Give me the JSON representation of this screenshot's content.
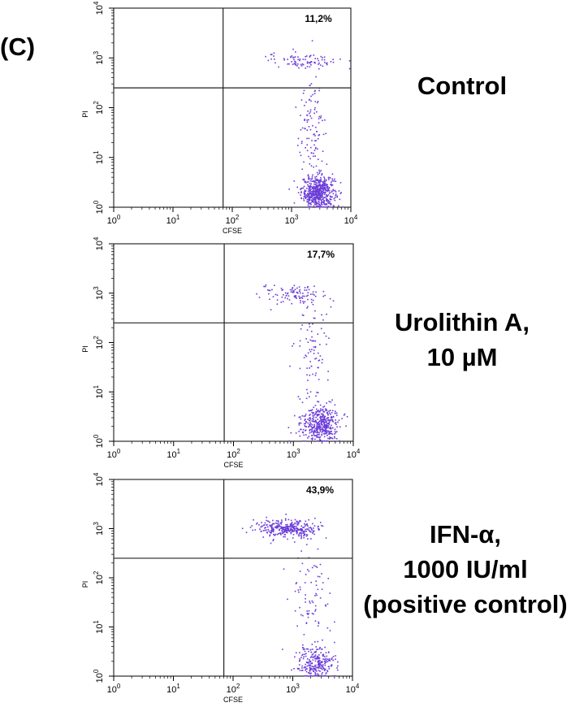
{
  "panel_label": "(C)",
  "conditions": [
    {
      "line1": "Control",
      "line2": "",
      "line3": ""
    },
    {
      "line1": "Urolithin A,",
      "line2": "10 µM",
      "line3": ""
    },
    {
      "line1": "IFN-α,",
      "line2": "1000 IU/ml",
      "line3": "(positive control)"
    }
  ],
  "chart_data": [
    {
      "type": "scatter",
      "xlabel": "CFSE",
      "ylabel": "PI",
      "xscale": "log",
      "yscale": "log",
      "xlim": [
        1,
        10000
      ],
      "ylim": [
        1,
        10000
      ],
      "xticks": [
        1,
        10,
        100,
        1000,
        10000
      ],
      "yticks": [
        1,
        10,
        100,
        1000,
        10000
      ],
      "gate": {
        "x": 70,
        "y": 250
      },
      "annotation": "11,2%",
      "point_color": "#6a3bd8",
      "clusters": [
        {
          "cx_log": 3.45,
          "cy_log": 0.3,
          "sx": 0.14,
          "sy": 0.17,
          "n": 560
        },
        {
          "cx_log": 3.2,
          "cy_log": 2.95,
          "sx": 0.3,
          "sy": 0.08,
          "n": 85
        },
        {
          "cx_log": 3.35,
          "cy_log": 1.6,
          "sx": 0.13,
          "sy": 0.55,
          "n": 110
        }
      ]
    },
    {
      "type": "scatter",
      "xlabel": "CFSE",
      "ylabel": "PI",
      "xscale": "log",
      "yscale": "log",
      "xlim": [
        1,
        10000
      ],
      "ylim": [
        1,
        10000
      ],
      "xticks": [
        1,
        10,
        100,
        1000,
        10000
      ],
      "yticks": [
        1,
        10,
        100,
        1000,
        10000
      ],
      "gate": {
        "x": 70,
        "y": 250
      },
      "annotation": "17,7%",
      "point_color": "#6a3bd8",
      "clusters": [
        {
          "cx_log": 3.45,
          "cy_log": 0.35,
          "sx": 0.16,
          "sy": 0.18,
          "n": 420
        },
        {
          "cx_log": 2.95,
          "cy_log": 2.98,
          "sx": 0.28,
          "sy": 0.1,
          "n": 100
        },
        {
          "cx_log": 3.3,
          "cy_log": 1.7,
          "sx": 0.15,
          "sy": 0.55,
          "n": 90
        }
      ]
    },
    {
      "type": "scatter",
      "xlabel": "CFSE",
      "ylabel": "PI",
      "xscale": "log",
      "yscale": "log",
      "xlim": [
        1,
        10000
      ],
      "ylim": [
        1,
        10000
      ],
      "xticks": [
        1,
        10,
        100,
        1000,
        10000
      ],
      "yticks": [
        1,
        10,
        100,
        1000,
        10000
      ],
      "gate": {
        "x": 70,
        "y": 250
      },
      "annotation": "43,9%",
      "point_color": "#6a3bd8",
      "clusters": [
        {
          "cx_log": 3.4,
          "cy_log": 0.25,
          "sx": 0.16,
          "sy": 0.17,
          "n": 260
        },
        {
          "cx_log": 2.9,
          "cy_log": 3.0,
          "sx": 0.26,
          "sy": 0.09,
          "n": 330
        },
        {
          "cx_log": 3.25,
          "cy_log": 1.6,
          "sx": 0.18,
          "sy": 0.6,
          "n": 90
        }
      ]
    }
  ]
}
